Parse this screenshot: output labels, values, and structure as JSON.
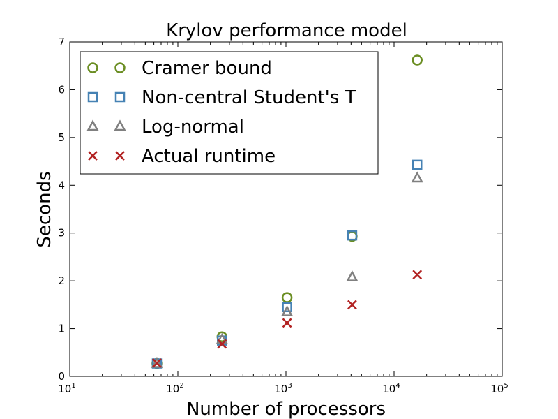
{
  "chart_data": {
    "type": "scatter",
    "title": "Krylov performance model",
    "xlabel": "Number of processors",
    "ylabel": "Seconds",
    "xscale": "log",
    "xlim": [
      10,
      100000
    ],
    "ylim": [
      0,
      7
    ],
    "xticks": [
      {
        "base": "10",
        "exp": "1"
      },
      {
        "base": "10",
        "exp": "2"
      },
      {
        "base": "10",
        "exp": "3"
      },
      {
        "base": "10",
        "exp": "4"
      },
      {
        "base": "10",
        "exp": "5"
      }
    ],
    "yticks": [
      "0",
      "1",
      "2",
      "3",
      "4",
      "5",
      "6",
      "7"
    ],
    "grid": false,
    "legend_position": "top-left",
    "series": [
      {
        "name": "Cramer bound",
        "marker": "circle",
        "color": "#6b8e23",
        "x": [
          64,
          256,
          1024,
          4096,
          16384
        ],
        "y": [
          0.27,
          0.83,
          1.65,
          2.93,
          6.62
        ]
      },
      {
        "name": "Non-central Student's T",
        "marker": "square",
        "color": "#4682b4",
        "x": [
          64,
          256,
          1024,
          4096,
          16384
        ],
        "y": [
          0.27,
          0.75,
          1.45,
          2.95,
          4.43
        ]
      },
      {
        "name": "Log-normal",
        "marker": "triangle",
        "color": "#808080",
        "x": [
          64,
          256,
          1024,
          4096,
          16384
        ],
        "y": [
          0.27,
          0.77,
          1.35,
          2.08,
          4.15
        ]
      },
      {
        "name": "Actual runtime",
        "marker": "x",
        "color": "#b22222",
        "x": [
          64,
          256,
          1024,
          4096,
          16384
        ],
        "y": [
          0.28,
          0.68,
          1.12,
          1.5,
          2.13
        ]
      }
    ]
  }
}
